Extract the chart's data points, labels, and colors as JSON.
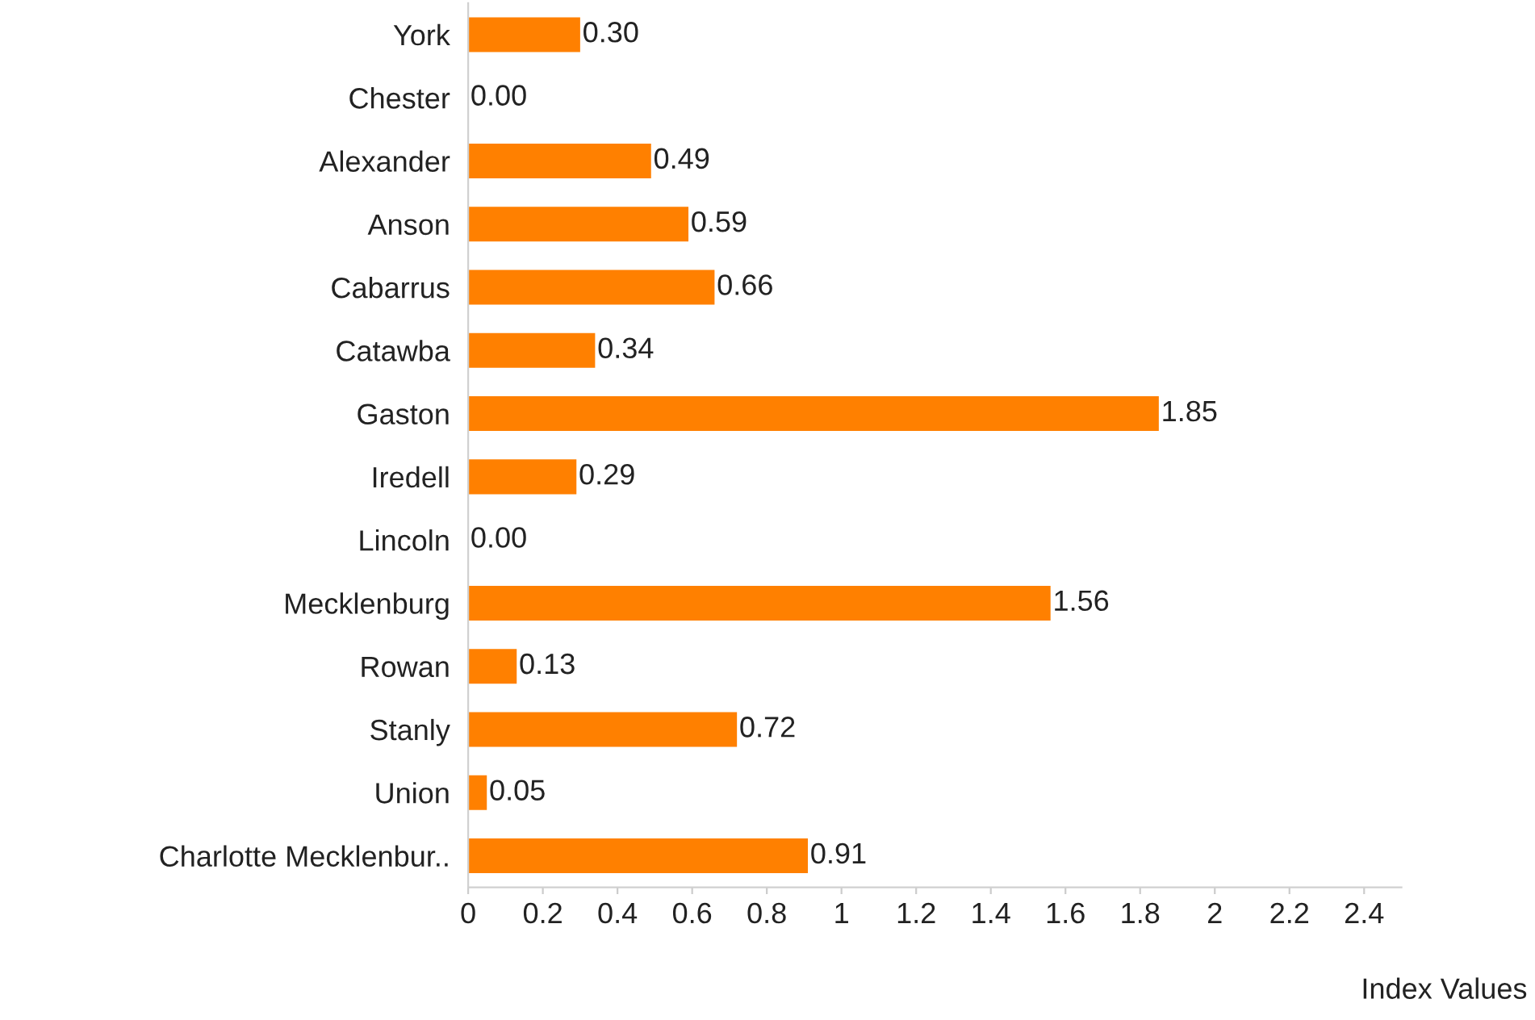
{
  "chart_data": {
    "type": "bar",
    "orientation": "horizontal",
    "xlabel": "Index Values",
    "categories": [
      "York",
      "Chester",
      "Alexander",
      "Anson",
      "Cabarrus",
      "Catawba",
      "Gaston",
      "Iredell",
      "Lincoln",
      "Mecklenburg",
      "Rowan",
      "Stanly",
      "Union",
      "Charlotte Mecklenbur.."
    ],
    "values": [
      0.3,
      0.0,
      0.49,
      0.59,
      0.66,
      0.34,
      1.85,
      0.29,
      0.0,
      1.56,
      0.13,
      0.72,
      0.05,
      0.91
    ],
    "value_labels": [
      "0.30",
      "0.00",
      "0.49",
      "0.59",
      "0.66",
      "0.34",
      "1.85",
      "0.29",
      "0.00",
      "1.56",
      "0.13",
      "0.72",
      "0.05",
      "0.91"
    ],
    "color": "#ff8000",
    "xlim": [
      0,
      2.5
    ],
    "xticks": [
      0,
      0.2,
      0.4,
      0.6,
      0.8,
      1,
      1.2,
      1.4,
      1.6,
      1.8,
      2,
      2.2,
      2.4
    ],
    "grid": false,
    "legend": false
  }
}
